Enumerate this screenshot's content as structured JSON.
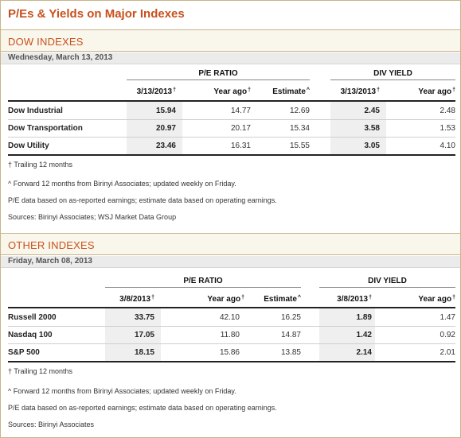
{
  "page_title": "P/Es & Yields on Major Indexes",
  "footnote_marks": {
    "trailing": "†",
    "forward": "^"
  },
  "dow": {
    "section_title": "DOW INDEXES",
    "date": "Wednesday, March 13, 2013",
    "group_pe": "P/E RATIO",
    "group_div": "DIV YIELD",
    "col_pe_current": "3/13/2013",
    "col_pe_yearago": "Year ago",
    "col_pe_estimate": "Estimate",
    "col_div_current": "3/13/2013",
    "col_div_yearago": "Year ago",
    "rows": [
      {
        "name": "Dow Industrial",
        "pe_current": "15.94",
        "pe_yearago": "14.77",
        "pe_estimate": "12.69",
        "div_current": "2.45",
        "div_yearago": "2.48"
      },
      {
        "name": "Dow Transportation",
        "pe_current": "20.97",
        "pe_yearago": "20.17",
        "pe_estimate": "15.34",
        "div_current": "3.58",
        "div_yearago": "1.53"
      },
      {
        "name": "Dow Utility",
        "pe_current": "23.46",
        "pe_yearago": "16.31",
        "pe_estimate": "15.55",
        "div_current": "3.05",
        "div_yearago": "4.10"
      }
    ],
    "notes": [
      "† Trailing 12 months",
      "^ Forward 12 months from Birinyi Associates; updated weekly on Friday.",
      "P/E data based on as-reported earnings; estimate data based on operating earnings.",
      "Sources: Birinyi Associates; WSJ Market Data Group"
    ]
  },
  "other": {
    "section_title": "OTHER INDEXES",
    "date": "Friday, March 08, 2013",
    "group_pe": "P/E RATIO",
    "group_div": "DIV YIELD",
    "col_pe_current": "3/8/2013",
    "col_pe_yearago": "Year ago",
    "col_pe_estimate": "Estimate",
    "col_div_current": "3/8/2013",
    "col_div_yearago": "Year ago",
    "rows": [
      {
        "name": "Russell 2000",
        "pe_current": "33.75",
        "pe_yearago": "42.10",
        "pe_estimate": "16.25",
        "div_current": "1.89",
        "div_yearago": "1.47"
      },
      {
        "name": "Nasdaq 100",
        "pe_current": "17.05",
        "pe_yearago": "11.80",
        "pe_estimate": "14.87",
        "div_current": "1.42",
        "div_yearago": "0.92"
      },
      {
        "name": "S&P 500",
        "pe_current": "18.15",
        "pe_yearago": "15.86",
        "pe_estimate": "13.85",
        "div_current": "2.14",
        "div_yearago": "2.01"
      }
    ],
    "notes": [
      "† Trailing 12 months",
      "^ Forward 12 months from Birinyi Associates; updated weekly on Friday.",
      "P/E data based on as-reported earnings; estimate data based on operating earnings.",
      "Sources: Birinyi Associates"
    ]
  }
}
